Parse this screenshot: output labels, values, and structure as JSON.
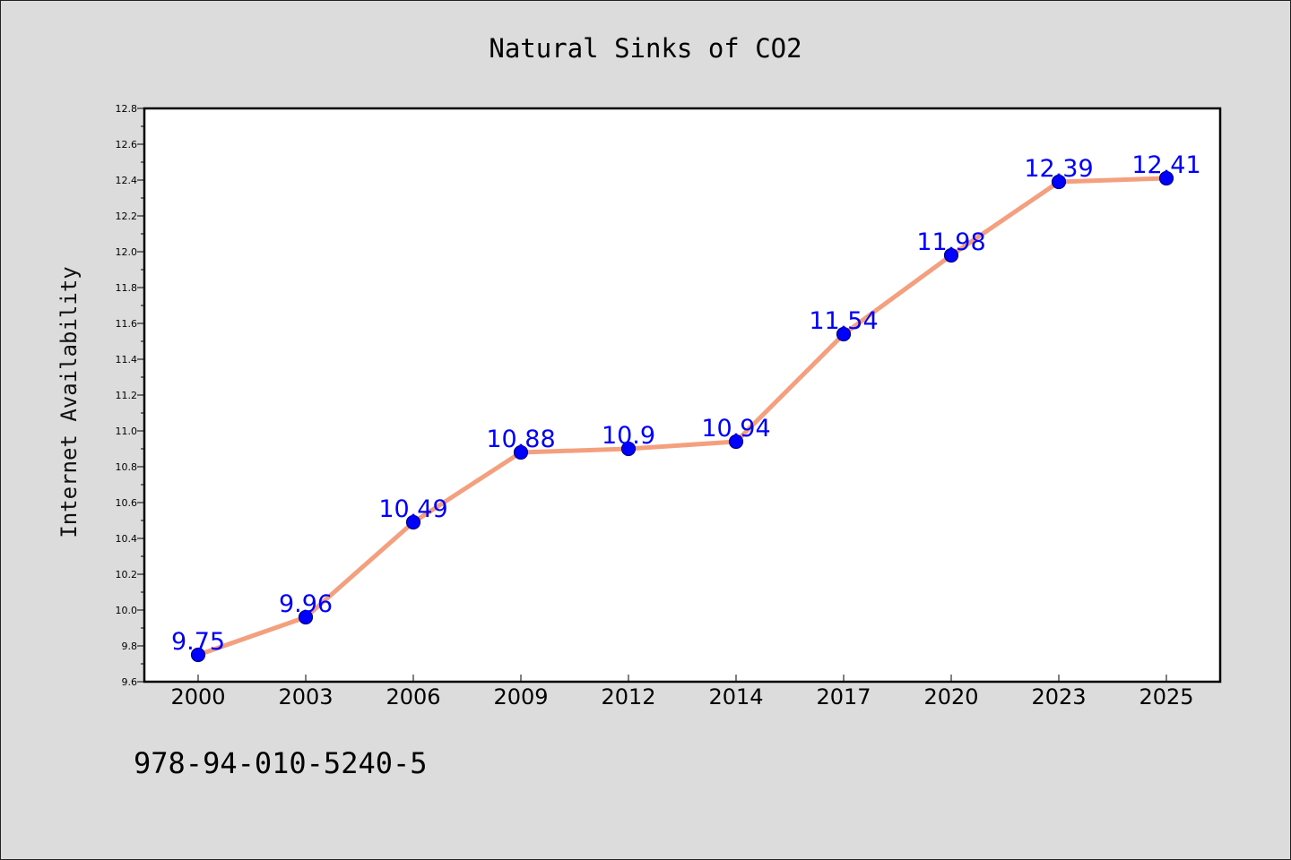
{
  "colors": {
    "background": "#dcdcdc",
    "plot_background": "#ffffff",
    "line": "#f4a07e",
    "marker": "#0000ff",
    "marker_edge": "#00008b",
    "label": "#0000ff"
  },
  "footer": {
    "code": "978-94-010-5240-5"
  },
  "chart_data": {
    "type": "line",
    "title": "Natural Sinks of CO2",
    "xlabel": "",
    "ylabel": "Internet Availability",
    "categories": [
      "2000",
      "2003",
      "2006",
      "2009",
      "2012",
      "2014",
      "2017",
      "2020",
      "2023",
      "2025"
    ],
    "series": [
      {
        "values": [
          9.75,
          9.96,
          10.49,
          10.88,
          10.9,
          10.94,
          11.54,
          11.98,
          12.39,
          12.41
        ],
        "data_labels": [
          "9.75",
          "9.96",
          "10.49",
          "10.88",
          "10.9",
          "10.94",
          "11.54",
          "11.98",
          "12.39",
          "12.41"
        ]
      }
    ],
    "ylim": [
      9.6,
      12.8
    ],
    "yticks": [
      "9.6",
      "9.8",
      "10.0",
      "10.2",
      "10.4",
      "10.6",
      "10.8",
      "11.0",
      "11.2",
      "11.4",
      "11.6",
      "11.8",
      "12.0",
      "12.2",
      "12.4",
      "12.6",
      "12.8"
    ],
    "grid": false,
    "legend": "none"
  }
}
